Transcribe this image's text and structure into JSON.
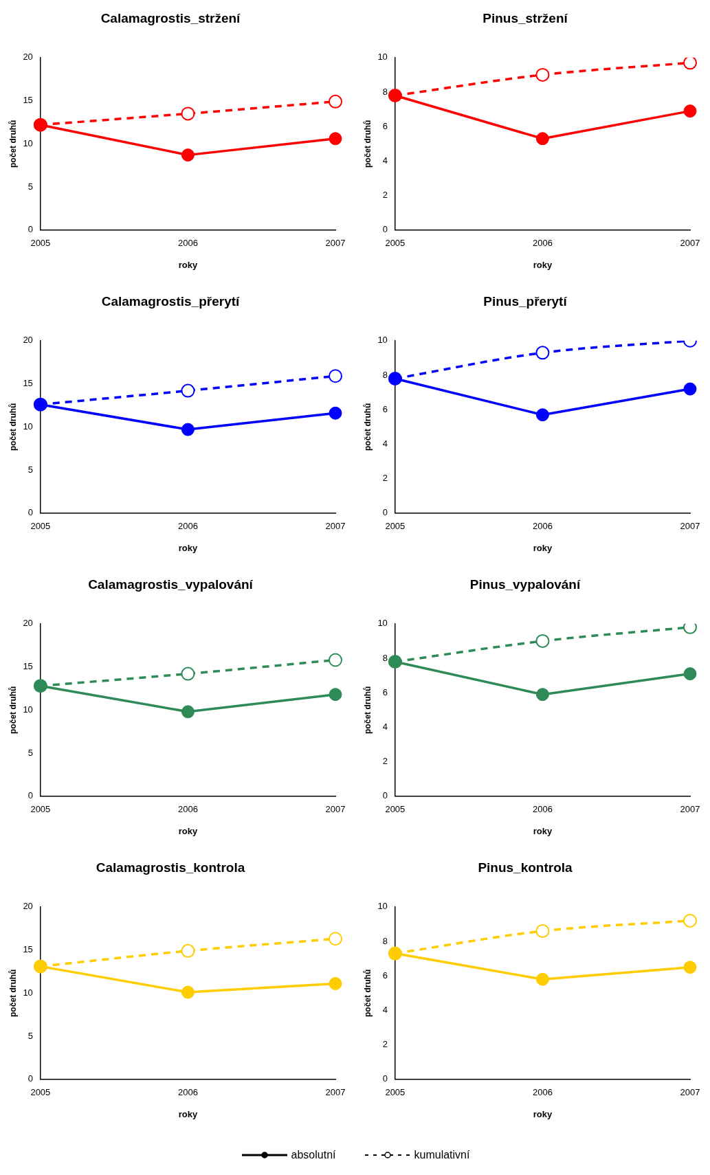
{
  "chart_data": [
    {
      "type": "line",
      "title": "Calamagrostis_stržení",
      "xlabel": "roky",
      "ylabel": "počet druhů",
      "categories": [
        "2005",
        "2006",
        "2007"
      ],
      "ylim": [
        0,
        20
      ],
      "yticks": [
        0,
        5,
        10,
        15,
        20
      ],
      "grid": false,
      "legend": false,
      "marker": "circle",
      "series": [
        {
          "color": "#ff0000",
          "line_style": "solid",
          "values": [
            12.2,
            8.7,
            10.6
          ]
        },
        {
          "color": "#ff0000",
          "line_style": "dashed",
          "values": [
            12.2,
            13.5,
            14.9
          ]
        }
      ]
    },
    {
      "type": "line",
      "title": "Pinus_stržení",
      "xlabel": "roky",
      "ylabel": "počet druhů",
      "categories": [
        "2005",
        "2006",
        "2007"
      ],
      "ylim": [
        0,
        10
      ],
      "yticks": [
        0,
        2,
        4,
        6,
        8,
        10
      ],
      "grid": false,
      "legend": false,
      "marker": "circle",
      "series": [
        {
          "color": "#ff0000",
          "line_style": "solid",
          "values": [
            7.8,
            5.3,
            6.9
          ]
        },
        {
          "color": "#ff0000",
          "line_style": "dashed",
          "values": [
            7.8,
            9.0,
            9.7
          ]
        }
      ]
    },
    {
      "type": "line",
      "title": "Calamagrostis_přerytí",
      "xlabel": "roky",
      "ylabel": "počet druhů",
      "categories": [
        "2005",
        "2006",
        "2007"
      ],
      "ylim": [
        0,
        20
      ],
      "yticks": [
        0,
        5,
        10,
        15,
        20
      ],
      "grid": false,
      "legend": false,
      "marker": "circle",
      "series": [
        {
          "color": "#0000ff",
          "line_style": "solid",
          "values": [
            12.6,
            9.7,
            11.6
          ]
        },
        {
          "color": "#0000ff",
          "line_style": "dashed",
          "values": [
            12.6,
            14.2,
            15.9
          ]
        }
      ]
    },
    {
      "type": "line",
      "title": "Pinus_přerytí",
      "xlabel": "roky",
      "ylabel": "počet druhů",
      "categories": [
        "2005",
        "2006",
        "2007"
      ],
      "ylim": [
        0,
        10
      ],
      "yticks": [
        0,
        2,
        4,
        6,
        8,
        10
      ],
      "grid": false,
      "legend": false,
      "marker": "circle",
      "series": [
        {
          "color": "#0000ff",
          "line_style": "solid",
          "values": [
            7.8,
            5.7,
            7.2
          ]
        },
        {
          "color": "#0000ff",
          "line_style": "dashed",
          "values": [
            7.8,
            9.3,
            10.0
          ]
        }
      ]
    },
    {
      "type": "line",
      "title": "Calamagrostis_vypalování",
      "xlabel": "roky",
      "ylabel": "počet druhů",
      "categories": [
        "2005",
        "2006",
        "2007"
      ],
      "ylim": [
        0,
        20
      ],
      "yticks": [
        0,
        5,
        10,
        15,
        20
      ],
      "grid": false,
      "legend": false,
      "marker": "circle",
      "series": [
        {
          "color": "#2e8b57",
          "line_style": "solid",
          "values": [
            12.8,
            9.8,
            11.8
          ]
        },
        {
          "color": "#2e8b57",
          "line_style": "dashed",
          "values": [
            12.8,
            14.2,
            15.8
          ]
        }
      ]
    },
    {
      "type": "line",
      "title": "Pinus_vypalování",
      "xlabel": "roky",
      "ylabel": "počet druhů",
      "categories": [
        "2005",
        "2006",
        "2007"
      ],
      "ylim": [
        0,
        10
      ],
      "yticks": [
        0,
        2,
        4,
        6,
        8,
        10
      ],
      "grid": false,
      "legend": false,
      "marker": "circle",
      "series": [
        {
          "color": "#2e8b57",
          "line_style": "solid",
          "values": [
            7.8,
            5.9,
            7.1
          ]
        },
        {
          "color": "#2e8b57",
          "line_style": "dashed",
          "values": [
            7.8,
            9.0,
            9.8
          ]
        }
      ]
    },
    {
      "type": "line",
      "title": "Calamagrostis_kontrola",
      "xlabel": "roky",
      "ylabel": "počet druhů",
      "categories": [
        "2005",
        "2006",
        "2007"
      ],
      "ylim": [
        0,
        20
      ],
      "yticks": [
        0,
        5,
        10,
        15,
        20
      ],
      "grid": false,
      "legend": false,
      "marker": "circle",
      "series": [
        {
          "color": "#ffcc00",
          "line_style": "solid",
          "values": [
            13.1,
            10.1,
            11.1
          ]
        },
        {
          "color": "#ffcc00",
          "line_style": "dashed",
          "values": [
            13.1,
            14.9,
            16.3
          ]
        }
      ]
    },
    {
      "type": "line",
      "title": "Pinus_kontrola",
      "xlabel": "roky",
      "ylabel": "počet druhů",
      "categories": [
        "2005",
        "2006",
        "2007"
      ],
      "ylim": [
        0,
        10
      ],
      "yticks": [
        0,
        2,
        4,
        6,
        8,
        10
      ],
      "grid": false,
      "legend": false,
      "marker": "circle",
      "series": [
        {
          "color": "#ffcc00",
          "line_style": "solid",
          "values": [
            7.3,
            5.8,
            6.5
          ]
        },
        {
          "color": "#ffcc00",
          "line_style": "dashed",
          "values": [
            7.3,
            8.6,
            9.2
          ]
        }
      ]
    },
    {
      "type": "other",
      "annotations": [
        "absolutní",
        "kumulativní"
      ]
    }
  ]
}
